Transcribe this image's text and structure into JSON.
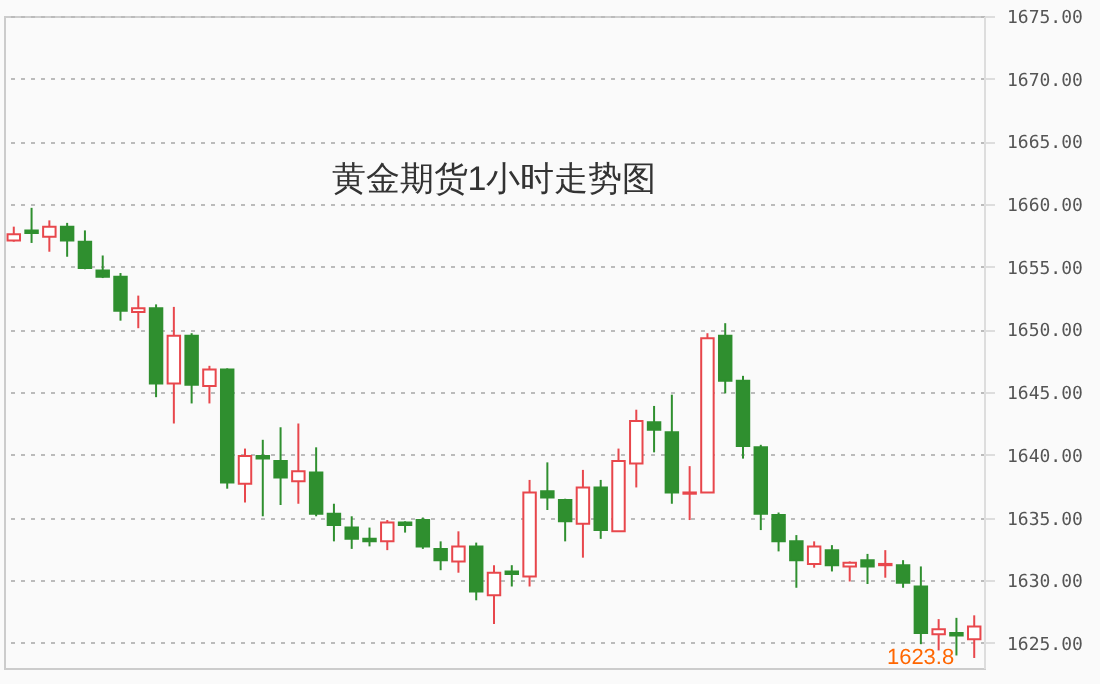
{
  "chart_data": {
    "type": "candlestick",
    "title": "黄金期货1小时走势图",
    "categories": [
      null,
      null,
      null,
      null,
      null,
      null,
      null,
      null,
      null,
      null,
      null,
      null,
      null,
      null,
      null,
      null,
      null,
      null,
      null,
      null,
      null,
      null,
      null,
      null,
      null,
      null,
      null,
      null,
      null,
      null,
      null,
      null,
      null,
      null,
      null,
      null,
      null,
      null,
      null,
      null,
      null,
      null,
      null,
      null,
      null,
      null,
      null,
      null,
      null,
      null,
      null,
      null,
      null,
      null,
      null
    ],
    "ohlc": [
      [
        1657.1,
        1658.2,
        1657.0,
        1657.6
      ],
      [
        1657.9,
        1659.7,
        1656.9,
        1657.7
      ],
      [
        1657.4,
        1658.7,
        1656.2,
        1658.2
      ],
      [
        1658.2,
        1658.5,
        1655.8,
        1657.1
      ],
      [
        1657.0,
        1657.9,
        1654.8,
        1654.9
      ],
      [
        1654.7,
        1655.9,
        1654.1,
        1654.2
      ],
      [
        1654.2,
        1654.5,
        1650.7,
        1651.5
      ],
      [
        1651.4,
        1652.7,
        1650.1,
        1651.7
      ],
      [
        1651.7,
        1652.0,
        1644.6,
        1645.7
      ],
      [
        1645.7,
        1651.8,
        1642.5,
        1649.5
      ],
      [
        1649.5,
        1649.7,
        1644.1,
        1645.6
      ],
      [
        1645.5,
        1647.1,
        1644.1,
        1646.8
      ],
      [
        1646.8,
        1646.9,
        1637.3,
        1637.8
      ],
      [
        1637.7,
        1640.5,
        1636.2,
        1639.9
      ],
      [
        1639.9,
        1641.2,
        1635.1,
        1639.7
      ],
      [
        1639.5,
        1642.2,
        1636.0,
        1638.2
      ],
      [
        1637.9,
        1642.5,
        1636.1,
        1638.7
      ],
      [
        1638.6,
        1640.6,
        1635.1,
        1635.3
      ],
      [
        1635.3,
        1636.1,
        1633.1,
        1634.4
      ],
      [
        1634.2,
        1635.1,
        1632.5,
        1633.3
      ],
      [
        1633.3,
        1634.2,
        1632.7,
        1633.1
      ],
      [
        1633.1,
        1634.8,
        1632.4,
        1634.6
      ],
      [
        1634.6,
        1634.7,
        1633.8,
        1634.4
      ],
      [
        1634.8,
        1635.0,
        1632.5,
        1632.7
      ],
      [
        1632.5,
        1633.1,
        1630.8,
        1631.6
      ],
      [
        1631.5,
        1633.9,
        1630.6,
        1632.7
      ],
      [
        1632.7,
        1633.0,
        1628.4,
        1629.1
      ],
      [
        1628.8,
        1631.2,
        1626.5,
        1630.6
      ],
      [
        1630.7,
        1631.2,
        1629.5,
        1630.5
      ],
      [
        1630.3,
        1638.0,
        1629.5,
        1637.0
      ],
      [
        1637.1,
        1639.4,
        1635.6,
        1636.6
      ],
      [
        1636.4,
        1636.5,
        1633.1,
        1634.7
      ],
      [
        1634.5,
        1638.8,
        1631.8,
        1637.4
      ],
      [
        1637.4,
        1638.0,
        1633.3,
        1634.0
      ],
      [
        1633.9,
        1640.5,
        1633.9,
        1639.5
      ],
      [
        1639.3,
        1643.6,
        1637.4,
        1642.7
      ],
      [
        1642.6,
        1643.9,
        1640.2,
        1642.0
      ],
      [
        1641.8,
        1644.8,
        1636.1,
        1637.0
      ],
      [
        1636.9,
        1639.1,
        1634.8,
        1637.0
      ],
      [
        1637.0,
        1649.7,
        1637.0,
        1649.3
      ],
      [
        1649.5,
        1650.5,
        1644.9,
        1645.9
      ],
      [
        1645.9,
        1646.3,
        1639.7,
        1640.7
      ],
      [
        1640.6,
        1640.8,
        1634.0,
        1635.3
      ],
      [
        1635.2,
        1635.4,
        1632.3,
        1633.1
      ],
      [
        1633.1,
        1633.6,
        1629.4,
        1631.6
      ],
      [
        1631.3,
        1633.1,
        1631.0,
        1632.7
      ],
      [
        1632.4,
        1632.8,
        1630.7,
        1631.2
      ],
      [
        1631.1,
        1631.5,
        1629.9,
        1631.4
      ],
      [
        1631.6,
        1632.1,
        1629.7,
        1631.1
      ],
      [
        1631.2,
        1632.4,
        1630.2,
        1631.3
      ],
      [
        1631.2,
        1631.6,
        1629.4,
        1629.8
      ],
      [
        1629.5,
        1631.1,
        1624.9,
        1625.8
      ],
      [
        1625.7,
        1626.9,
        1624.4,
        1626.1
      ],
      [
        1625.8,
        1627.0,
        1624.0,
        1625.6
      ],
      [
        1625.3,
        1627.2,
        1623.8,
        1626.3
      ]
    ],
    "colors": [
      "#e8474c",
      "#2f8f2f",
      "#e8474c",
      "#2f8f2f",
      "#2f8f2f",
      "#2f8f2f",
      "#2f8f2f",
      "#e8474c",
      "#2f8f2f",
      "#e8474c",
      "#2f8f2f",
      "#e8474c",
      "#2f8f2f",
      "#e8474c",
      "#2f8f2f",
      "#2f8f2f",
      "#e8474c",
      "#2f8f2f",
      "#2f8f2f",
      "#2f8f2f",
      "#2f8f2f",
      "#e8474c",
      "#2f8f2f",
      "#2f8f2f",
      "#2f8f2f",
      "#e8474c",
      "#2f8f2f",
      "#e8474c",
      "#2f8f2f",
      "#e8474c",
      "#2f8f2f",
      "#2f8f2f",
      "#e8474c",
      "#2f8f2f",
      "#e8474c",
      "#e8474c",
      "#2f8f2f",
      "#2f8f2f",
      "#e8474c",
      "#e8474c",
      "#2f8f2f",
      "#2f8f2f",
      "#2f8f2f",
      "#2f8f2f",
      "#2f8f2f",
      "#e8474c",
      "#2f8f2f",
      "#e8474c",
      "#2f8f2f",
      "#e8474c",
      "#2f8f2f",
      "#2f8f2f",
      "#e8474c",
      "#2f8f2f",
      "#e8474c"
    ],
    "ylim": [
      1623,
      1675
    ],
    "yticks": [
      {
        "value": 1625,
        "label": "1625.00"
      },
      {
        "value": 1630,
        "label": "1630.00"
      },
      {
        "value": 1635,
        "label": "1635.00"
      },
      {
        "value": 1640,
        "label": "1640.00"
      },
      {
        "value": 1645,
        "label": "1645.00"
      },
      {
        "value": 1650,
        "label": "1650.00"
      },
      {
        "value": 1655,
        "label": "1655.00"
      },
      {
        "value": 1660,
        "label": "1660.00"
      },
      {
        "value": 1665,
        "label": "1665.00"
      },
      {
        "value": 1670,
        "label": "1670.00"
      },
      {
        "value": 1675,
        "label": "1675.00"
      }
    ],
    "grid": "y",
    "annotations": [
      "1623.8"
    ]
  }
}
